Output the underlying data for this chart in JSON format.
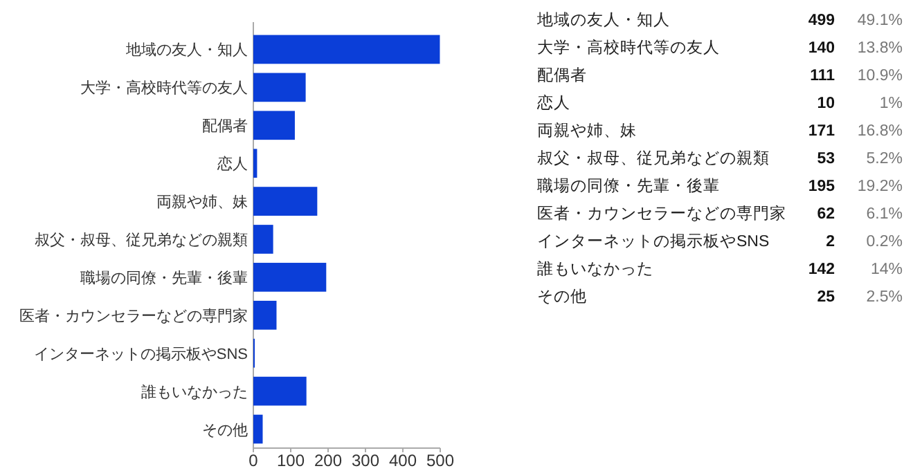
{
  "chart_data": [
    {
      "type": "bar",
      "orientation": "horizontal",
      "categories": [
        "地域の友人・知人",
        "大学・高校時代等の友人",
        "配偶者",
        "恋人",
        "両親や姉、妹",
        "叔父・叔母、従兄弟などの親類",
        "職場の同僚・先輩・後輩",
        "医者・カウンセラーなどの専門家",
        "インターネットの掲示板やSNS",
        "誰もいなかった",
        "その他"
      ],
      "values": [
        499,
        140,
        111,
        10,
        171,
        53,
        195,
        62,
        2,
        142,
        25
      ],
      "color": "#0b3ed8",
      "xlim": [
        0,
        500
      ],
      "xticks": [
        0,
        100,
        200,
        300,
        400,
        500
      ]
    },
    {
      "type": "other",
      "categories": [
        "地域の友人・知人",
        "大学・高校時代等の友人",
        "配偶者",
        "恋人",
        "両親や姉、妹",
        "叔父・叔母、従兄弟などの親類",
        "職場の同僚・先輩・後輩",
        "医者・カウンセラーなどの専門家",
        "インターネットの掲示板やSNS",
        "誰もいなかった",
        "その他"
      ],
      "series": [
        {
          "values": [
            499,
            140,
            111,
            10,
            171,
            53,
            195,
            62,
            2,
            142,
            25
          ]
        },
        {
          "values": [
            49.1,
            13.8,
            10.9,
            1,
            16.8,
            5.2,
            19.2,
            6.1,
            0.2,
            14,
            2.5
          ],
          "value_labels": [
            "49.1%",
            "13.8%",
            "10.9%",
            "1%",
            "16.8%",
            "5.2%",
            "19.2%",
            "6.1%",
            "0.2%",
            "14%",
            "2.5%"
          ]
        }
      ],
      "data_labels": true
    }
  ]
}
